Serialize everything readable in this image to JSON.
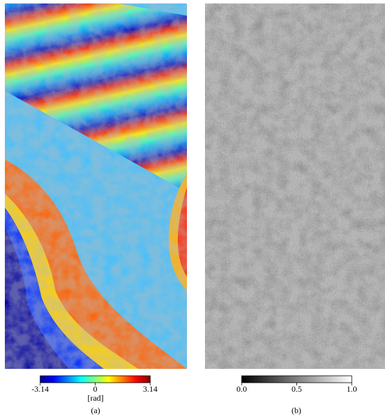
{
  "figures": [
    {
      "caption": "(a)",
      "colorbar": {
        "unit": "[rad]",
        "lim": [
          -3.14,
          3.14
        ],
        "ticks": [
          -3.14,
          0,
          3.14
        ]
      }
    },
    {
      "caption": "(b)",
      "colorbar": {
        "lim": [
          0,
          1
        ],
        "ticks": [
          {
            "value": 0,
            "label": "0.0"
          },
          {
            "value": 0.5,
            "label": "0.5"
          },
          {
            "value": 1,
            "label": "1.0"
          }
        ]
      }
    }
  ]
}
